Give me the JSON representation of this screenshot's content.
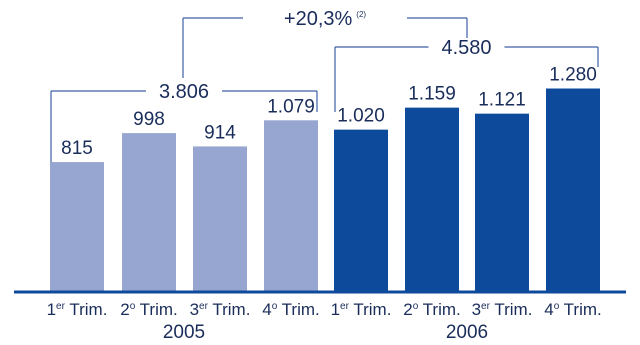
{
  "chart_data": {
    "type": "bar",
    "categories": [
      "1er Trim.",
      "2o Trim.",
      "3er Trim.",
      "4o Trim.",
      "1er Trim.",
      "2o Trim.",
      "3er Trim.",
      "4o Trim."
    ],
    "category_parts": [
      {
        "num": "1",
        "sup": "er",
        "rest": " Trim."
      },
      {
        "num": "2",
        "sup": "o",
        "rest": " Trim."
      },
      {
        "num": "3",
        "sup": "er",
        "rest": " Trim."
      },
      {
        "num": "4",
        "sup": "o",
        "rest": " Trim."
      },
      {
        "num": "1",
        "sup": "er",
        "rest": " Trim."
      },
      {
        "num": "2",
        "sup": "o",
        "rest": " Trim."
      },
      {
        "num": "3",
        "sup": "er",
        "rest": " Trim."
      },
      {
        "num": "4",
        "sup": "o",
        "rest": " Trim."
      }
    ],
    "groups": [
      {
        "name": "2005",
        "values": [
          815,
          998,
          914,
          1079
        ],
        "labels": [
          "815",
          "998",
          "914",
          "1.079"
        ],
        "total_label": "3.806",
        "color": "#97a6d0"
      },
      {
        "name": "2006",
        "values": [
          1020,
          1159,
          1121,
          1280
        ],
        "labels": [
          "1.020",
          "1.159",
          "1.121",
          "1.280"
        ],
        "total_label": "4.580",
        "color": "#0e4a9c"
      }
    ],
    "growth_label": "+20,3%",
    "growth_note": "(2)",
    "ylim": [
      0,
      1400
    ],
    "title": "",
    "xlabel": "",
    "ylabel": "",
    "colors": {
      "axis": "#0e4a9c",
      "text": "#1a2d5a",
      "bracket": "#3d5fa8"
    }
  }
}
